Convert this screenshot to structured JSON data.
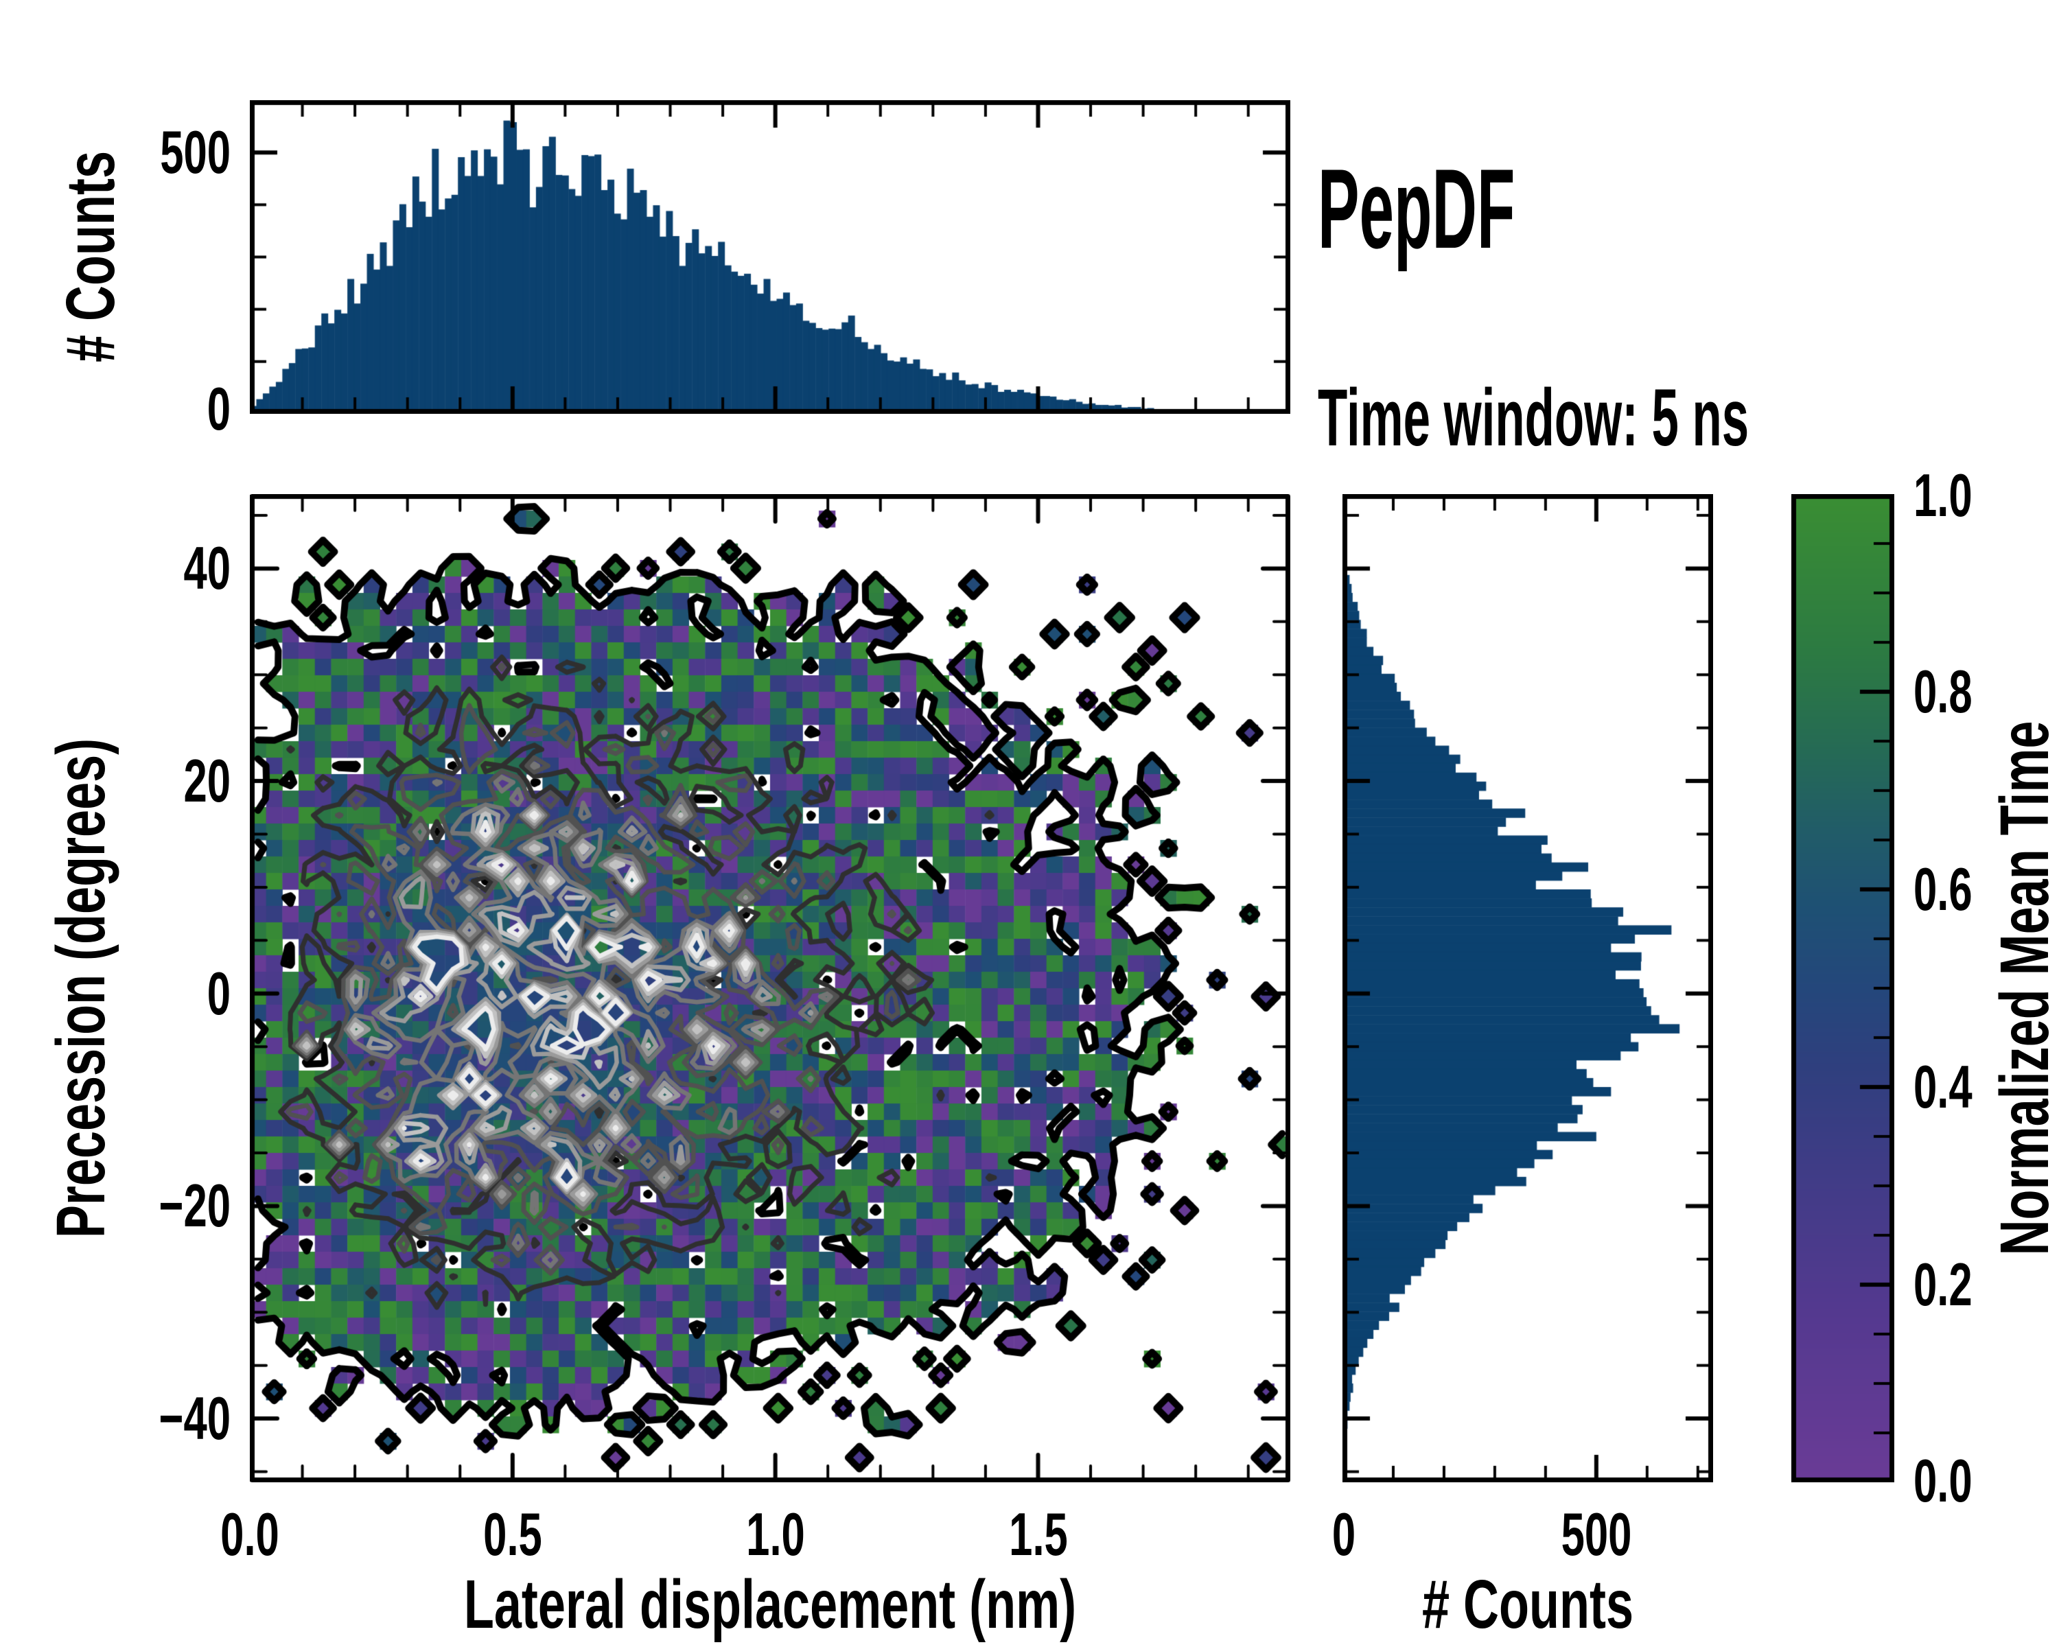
{
  "title": "PepDF",
  "subtitle": "Time window: 5 ns",
  "chart_data": {
    "type": "heatmap",
    "description": "2D histogram of precession vs lateral displacement with contour overlay, marginal count histograms on top and right, and a colorbar for normalized mean time",
    "seed": 7,
    "bar_color": "#0b416f",
    "main": {
      "xlabel": "Lateral displacement (nm)",
      "ylabel": "Precession (degrees)",
      "xlim": [
        0,
        1.98
      ],
      "ylim": [
        -46,
        47
      ],
      "xtick_labels": [
        "0.0",
        "0.5",
        "1.0",
        "1.5"
      ],
      "xtick_values": [
        0,
        0.5,
        1.0,
        1.5
      ],
      "xminor_step": 0.1,
      "ytick_labels": [
        "40",
        "20",
        "0",
        "−20",
        "−40"
      ],
      "ytick_values": [
        40,
        20,
        0,
        -20,
        -40
      ],
      "yminor_step": 5,
      "bins": [
        64,
        60
      ],
      "peak_cell_count": 24,
      "count_noise_sigma": 0.5,
      "contour": {
        "outer_level": 0.5,
        "level_fracs": [
          0.17,
          0.3,
          0.44,
          0.58,
          0.73,
          0.88
        ],
        "colors": [
          "#000000",
          "#2f2f2f",
          "#515151",
          "#757575",
          "#9a9a9a",
          "#c2c2c2",
          "#ececec"
        ],
        "widths": [
          10,
          7,
          6.5,
          6.5,
          6.5,
          6.5,
          6.5
        ]
      }
    },
    "top_marginal": {
      "ylabel": "# Counts",
      "ylim": [
        0,
        600
      ],
      "ytick_labels": [
        "500",
        "0"
      ],
      "ytick_values": [
        500,
        0
      ],
      "yminor_step": 100,
      "bins": 160,
      "peak": 500,
      "envelope": [
        [
          0,
          5
        ],
        [
          0.05,
          60
        ],
        [
          0.1,
          120
        ],
        [
          0.15,
          180
        ],
        [
          0.2,
          240
        ],
        [
          0.25,
          290
        ],
        [
          0.3,
          370
        ],
        [
          0.35,
          430
        ],
        [
          0.4,
          455
        ],
        [
          0.45,
          480
        ],
        [
          0.5,
          500
        ],
        [
          0.55,
          490
        ],
        [
          0.6,
          470
        ],
        [
          0.65,
          440
        ],
        [
          0.7,
          430
        ],
        [
          0.75,
          400
        ],
        [
          0.8,
          360
        ],
        [
          0.85,
          330
        ],
        [
          0.9,
          300
        ],
        [
          0.95,
          250
        ],
        [
          1.0,
          230
        ],
        [
          1.05,
          200
        ],
        [
          1.1,
          170
        ],
        [
          1.15,
          145
        ],
        [
          1.2,
          118
        ],
        [
          1.25,
          98
        ],
        [
          1.3,
          80
        ],
        [
          1.35,
          65
        ],
        [
          1.4,
          55
        ],
        [
          1.45,
          45
        ],
        [
          1.5,
          38
        ],
        [
          1.55,
          29
        ],
        [
          1.6,
          21
        ],
        [
          1.65,
          15
        ],
        [
          1.7,
          10
        ],
        [
          1.75,
          7
        ],
        [
          1.8,
          5
        ],
        [
          1.85,
          3
        ],
        [
          1.9,
          2
        ],
        [
          1.98,
          0
        ]
      ]
    },
    "right_marginal": {
      "xlabel": "# Counts",
      "xlim": [
        0,
        730
      ],
      "xtick_labels": [
        "0",
        "500"
      ],
      "xtick_values": [
        0,
        500
      ],
      "xminor_step": 100,
      "bins": 110,
      "peak": 640,
      "envelope": [
        [
          -46,
          0
        ],
        [
          -44,
          2
        ],
        [
          -42,
          5
        ],
        [
          -40,
          10
        ],
        [
          -38,
          16
        ],
        [
          -36,
          25
        ],
        [
          -34,
          35
        ],
        [
          -32,
          60
        ],
        [
          -30,
          90
        ],
        [
          -28,
          120
        ],
        [
          -26,
          150
        ],
        [
          -24,
          185
        ],
        [
          -22,
          230
        ],
        [
          -20,
          280
        ],
        [
          -18,
          330
        ],
        [
          -16,
          370
        ],
        [
          -14,
          420
        ],
        [
          -12,
          450
        ],
        [
          -10,
          480
        ],
        [
          -8,
          520
        ],
        [
          -6,
          560
        ],
        [
          -4,
          600
        ],
        [
          -2,
          640
        ],
        [
          0,
          620
        ],
        [
          2,
          600
        ],
        [
          4,
          610
        ],
        [
          6,
          570
        ],
        [
          8,
          520
        ],
        [
          10,
          470
        ],
        [
          12,
          430
        ],
        [
          14,
          390
        ],
        [
          16,
          350
        ],
        [
          18,
          300
        ],
        [
          20,
          260
        ],
        [
          22,
          220
        ],
        [
          24,
          180
        ],
        [
          26,
          150
        ],
        [
          28,
          120
        ],
        [
          30,
          90
        ],
        [
          32,
          65
        ],
        [
          34,
          45
        ],
        [
          36,
          30
        ],
        [
          38,
          18
        ],
        [
          40,
          8
        ],
        [
          42,
          3
        ],
        [
          44,
          1
        ],
        [
          46,
          0
        ],
        [
          47,
          0
        ]
      ]
    },
    "colorbar": {
      "label": "Normalized Mean Time",
      "tick_labels": [
        "1.0",
        "0.8",
        "0.6",
        "0.4",
        "0.2",
        "0.0"
      ],
      "tick_values": [
        1.0,
        0.8,
        0.6,
        0.4,
        0.2,
        0.0
      ],
      "minor_step": 0.05,
      "stops": [
        [
          0.0,
          "#6a3b96"
        ],
        [
          0.18,
          "#53398f"
        ],
        [
          0.32,
          "#3f3c86"
        ],
        [
          0.42,
          "#2f3f7e"
        ],
        [
          0.5,
          "#24477b"
        ],
        [
          0.58,
          "#1e5074"
        ],
        [
          0.66,
          "#215c68"
        ],
        [
          0.74,
          "#256a55"
        ],
        [
          0.84,
          "#2c7a42"
        ],
        [
          1.0,
          "#3a8e33"
        ]
      ]
    }
  }
}
